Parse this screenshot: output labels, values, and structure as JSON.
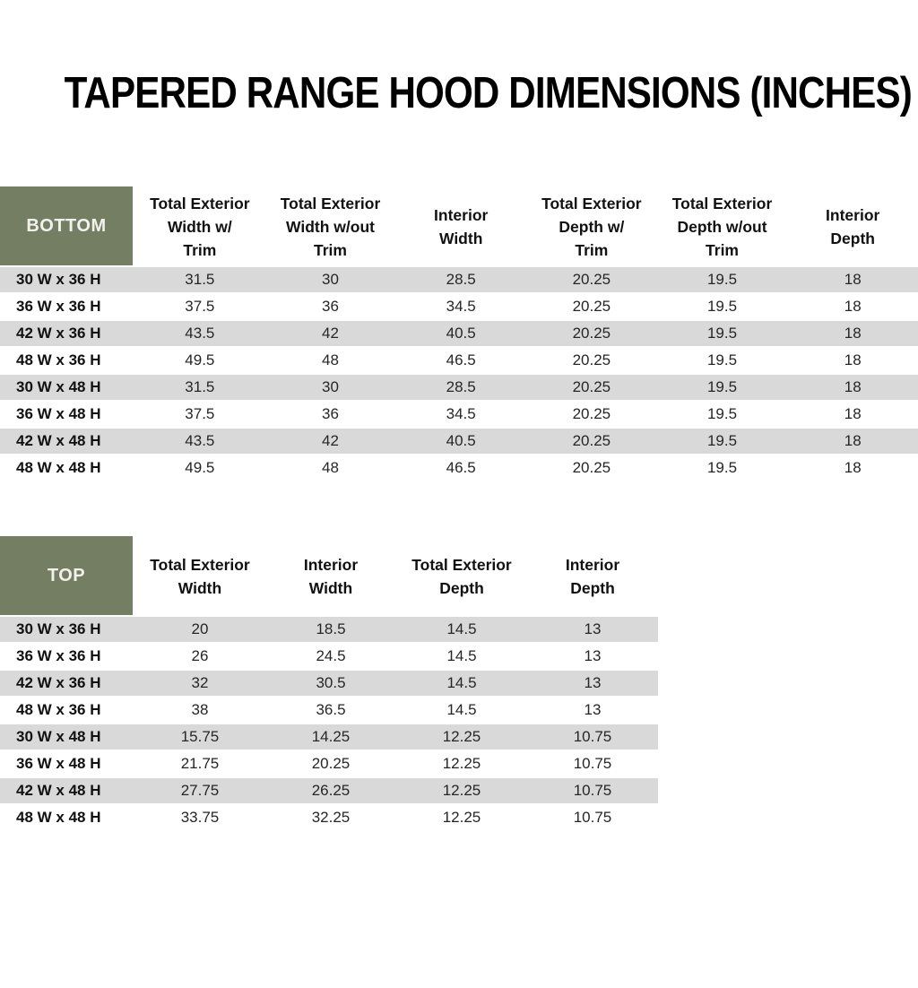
{
  "title": "TAPERED RANGE HOOD DIMENSIONS (INCHES)",
  "colors": {
    "header_green": "#747e63",
    "header_text": "#f2f1ec",
    "stripe_gray": "#d9d9d9",
    "body_text": "#262626"
  },
  "bottom_table": {
    "corner_label": "BOTTOM",
    "columns": [
      "Total Exterior\nWidth w/\nTrim",
      "Total Exterior\nWidth w/out\nTrim",
      "Interior\nWidth",
      "Total Exterior\nDepth w/\nTrim",
      "Total Exterior\nDepth w/out\nTrim",
      "Interior\nDepth"
    ],
    "rows": [
      {
        "label": "30 W x 36 H",
        "values": [
          "31.5",
          "30",
          "28.5",
          "20.25",
          "19.5",
          "18"
        ]
      },
      {
        "label": "36 W x 36 H",
        "values": [
          "37.5",
          "36",
          "34.5",
          "20.25",
          "19.5",
          "18"
        ]
      },
      {
        "label": "42 W x 36 H",
        "values": [
          "43.5",
          "42",
          "40.5",
          "20.25",
          "19.5",
          "18"
        ]
      },
      {
        "label": "48 W x 36 H",
        "values": [
          "49.5",
          "48",
          "46.5",
          "20.25",
          "19.5",
          "18"
        ]
      },
      {
        "label": "30 W x 48 H",
        "values": [
          "31.5",
          "30",
          "28.5",
          "20.25",
          "19.5",
          "18"
        ]
      },
      {
        "label": "36 W x 48 H",
        "values": [
          "37.5",
          "36",
          "34.5",
          "20.25",
          "19.5",
          "18"
        ]
      },
      {
        "label": "42 W x 48 H",
        "values": [
          "43.5",
          "42",
          "40.5",
          "20.25",
          "19.5",
          "18"
        ]
      },
      {
        "label": "48 W x 48 H",
        "values": [
          "49.5",
          "48",
          "46.5",
          "20.25",
          "19.5",
          "18"
        ]
      }
    ]
  },
  "top_table": {
    "corner_label": "TOP",
    "columns": [
      "Total Exterior\nWidth",
      "Interior\nWidth",
      "Total Exterior\nDepth",
      "Interior\nDepth"
    ],
    "rows": [
      {
        "label": "30 W x 36 H",
        "values": [
          "20",
          "18.5",
          "14.5",
          "13"
        ]
      },
      {
        "label": "36 W x 36 H",
        "values": [
          "26",
          "24.5",
          "14.5",
          "13"
        ]
      },
      {
        "label": "42 W x 36 H",
        "values": [
          "32",
          "30.5",
          "14.5",
          "13"
        ]
      },
      {
        "label": "48 W x 36 H",
        "values": [
          "38",
          "36.5",
          "14.5",
          "13"
        ]
      },
      {
        "label": "30 W x 48 H",
        "values": [
          "15.75",
          "14.25",
          "12.25",
          "10.75"
        ]
      },
      {
        "label": "36 W x 48 H",
        "values": [
          "21.75",
          "20.25",
          "12.25",
          "10.75"
        ]
      },
      {
        "label": "42 W x 48 H",
        "values": [
          "27.75",
          "26.25",
          "12.25",
          "10.75"
        ]
      },
      {
        "label": "48 W x 48 H",
        "values": [
          "33.75",
          "32.25",
          "12.25",
          "10.75"
        ]
      }
    ]
  }
}
